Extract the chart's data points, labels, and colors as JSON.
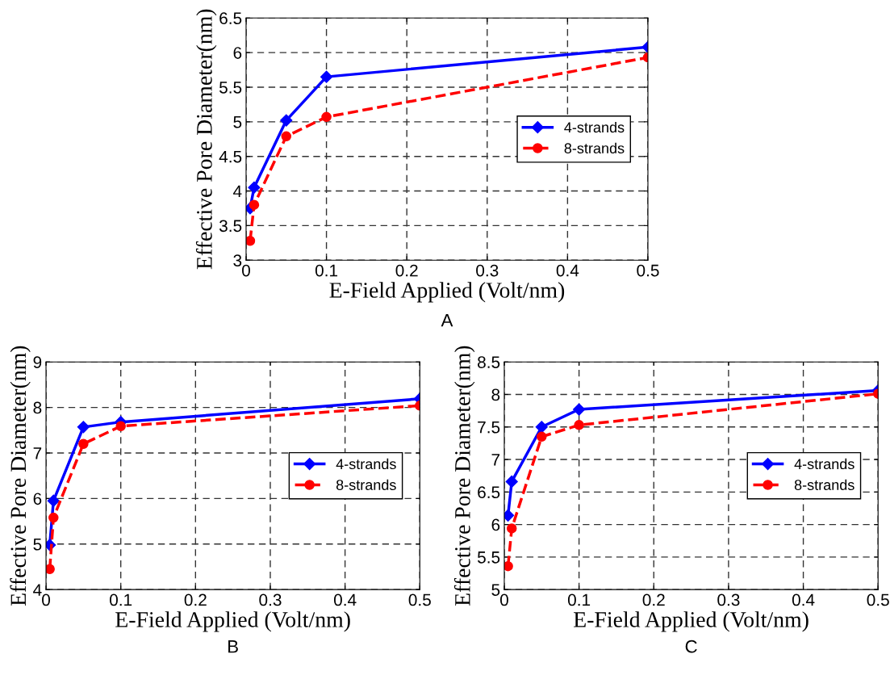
{
  "chart_data": [
    {
      "type": "line",
      "title": "A",
      "xlabel": "E-Field Applied (Volt/nm)",
      "ylabel": "Effective Pore Diameter(nm)",
      "x": [
        0.005,
        0.01,
        0.05,
        0.1,
        0.5
      ],
      "series": [
        {
          "name": "4-strands",
          "color": "#0000ff",
          "marker": "diamond",
          "line_style": "solid",
          "values": [
            3.75,
            4.05,
            5.02,
            5.65,
            6.08
          ]
        },
        {
          "name": "8-strands",
          "color": "#ff0000",
          "marker": "circle",
          "line_style": "dashed",
          "values": [
            3.28,
            3.8,
            4.79,
            5.07,
            5.93
          ]
        }
      ],
      "xlim": [
        0,
        0.5
      ],
      "xticks": [
        0,
        0.1,
        0.2,
        0.3,
        0.4,
        0.5
      ],
      "ylim": [
        3,
        6.5
      ],
      "yticks": [
        3,
        3.5,
        4,
        4.5,
        5,
        5.5,
        6,
        6.5
      ],
      "grid": true,
      "legend": "right"
    },
    {
      "type": "line",
      "title": "B",
      "xlabel": "E-Field Applied (Volt/nm)",
      "ylabel": "Effective Pore Diameter(nm)",
      "x": [
        0.005,
        0.01,
        0.05,
        0.1,
        0.5
      ],
      "series": [
        {
          "name": "4-strands",
          "color": "#0000ff",
          "marker": "diamond",
          "line_style": "solid",
          "values": [
            4.98,
            5.95,
            7.57,
            7.68,
            8.19
          ]
        },
        {
          "name": "8-strands",
          "color": "#ff0000",
          "marker": "circle",
          "line_style": "dashed",
          "values": [
            4.45,
            5.58,
            7.2,
            7.59,
            8.04
          ]
        }
      ],
      "xlim": [
        0,
        0.5
      ],
      "xticks": [
        0,
        0.1,
        0.2,
        0.3,
        0.4,
        0.5
      ],
      "ylim": [
        4,
        9
      ],
      "yticks": [
        4,
        5,
        6,
        7,
        8,
        9
      ],
      "grid": true,
      "legend": "right"
    },
    {
      "type": "line",
      "title": "C",
      "xlabel": "E-Field Applied (Volt/nm)",
      "ylabel": "Effective Pore Diameter(nm)",
      "x": [
        0.005,
        0.01,
        0.05,
        0.1,
        0.5
      ],
      "series": [
        {
          "name": "4-strands",
          "color": "#0000ff",
          "marker": "diamond",
          "line_style": "solid",
          "values": [
            6.14,
            6.66,
            7.5,
            7.77,
            8.06
          ]
        },
        {
          "name": "8-strands",
          "color": "#ff0000",
          "marker": "circle",
          "line_style": "dashed",
          "values": [
            5.36,
            5.94,
            7.35,
            7.53,
            8.01
          ]
        }
      ],
      "xlim": [
        0,
        0.5
      ],
      "xticks": [
        0,
        0.1,
        0.2,
        0.3,
        0.4,
        0.5
      ],
      "ylim": [
        5,
        8.5
      ],
      "yticks": [
        5,
        5.5,
        6,
        6.5,
        7,
        7.5,
        8,
        8.5
      ],
      "grid": true,
      "legend": "right"
    }
  ]
}
